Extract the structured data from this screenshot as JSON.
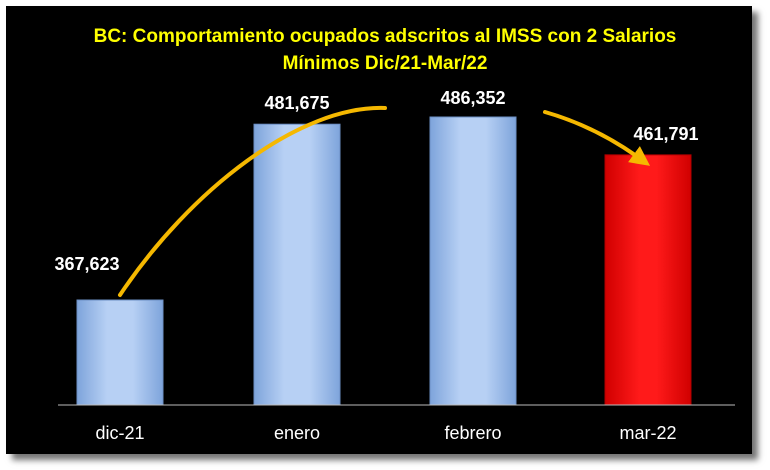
{
  "chart_data": {
    "type": "bar",
    "title_line1": "BC: Comportamiento ocupados adscritos al IMSS con 2 Salarios",
    "title_line2": "Mínimos Dic/21-Mar/22",
    "categories": [
      "dic-21",
      "enero",
      "febrero",
      "mar-22"
    ],
    "values": [
      367623,
      481675,
      486352,
      461791
    ],
    "value_labels": [
      "367,623",
      "481,675",
      "486,352",
      "461,791"
    ],
    "bar_colors": [
      "#a9c6f0",
      "#a9c6f0",
      "#a9c6f0",
      "#ff0000"
    ],
    "arrow_color": "#f5b800",
    "background": "#000000",
    "title_color": "#ffff00",
    "grid": false,
    "legend": "none"
  }
}
